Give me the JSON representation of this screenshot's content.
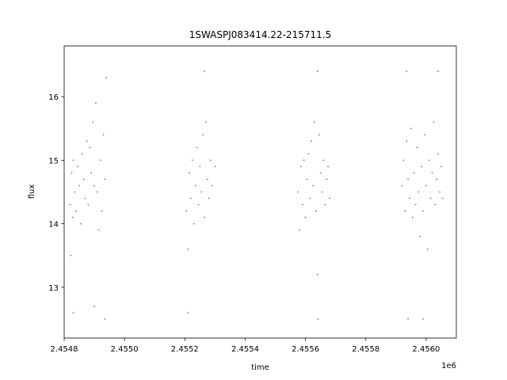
{
  "chart_data": {
    "type": "scatter",
    "title": "1SWASPJ083414.22-215711.5",
    "xlabel": "time",
    "ylabel": "flux",
    "x_offset_label": "1e6",
    "xlim": [
      2454800,
      2456100
    ],
    "ylim": [
      12.2,
      16.8
    ],
    "xticks": [
      2454800,
      2455000,
      2455200,
      2455400,
      2455600,
      2455800,
      2456000
    ],
    "xtick_labels": [
      "2.4548",
      "2.4550",
      "2.4552",
      "2.4554",
      "2.4556",
      "2.4558",
      "2.4560"
    ],
    "yticks": [
      13,
      14,
      15,
      16
    ],
    "ytick_labels": [
      "13",
      "14",
      "15",
      "16"
    ],
    "grid": false,
    "marker_color": "#1f77b4",
    "series": [
      {
        "values": [
          {
            "x": 2454820,
            "y": 14.3
          },
          {
            "x": 2454822,
            "y": 13.5
          },
          {
            "x": 2454825,
            "y": 14.8
          },
          {
            "x": 2454828,
            "y": 14.1
          },
          {
            "x": 2454830,
            "y": 15.0
          },
          {
            "x": 2454835,
            "y": 14.5
          },
          {
            "x": 2454840,
            "y": 14.2
          },
          {
            "x": 2454845,
            "y": 14.9
          },
          {
            "x": 2454850,
            "y": 14.6
          },
          {
            "x": 2454855,
            "y": 14.0
          },
          {
            "x": 2454860,
            "y": 15.1
          },
          {
            "x": 2454865,
            "y": 14.7
          },
          {
            "x": 2454870,
            "y": 14.4
          },
          {
            "x": 2454875,
            "y": 15.3
          },
          {
            "x": 2454880,
            "y": 14.3
          },
          {
            "x": 2454885,
            "y": 15.2
          },
          {
            "x": 2454890,
            "y": 14.8
          },
          {
            "x": 2454895,
            "y": 15.6
          },
          {
            "x": 2454900,
            "y": 14.6
          },
          {
            "x": 2454905,
            "y": 15.9
          },
          {
            "x": 2454910,
            "y": 14.5
          },
          {
            "x": 2454915,
            "y": 13.9
          },
          {
            "x": 2454920,
            "y": 15.0
          },
          {
            "x": 2454925,
            "y": 14.2
          },
          {
            "x": 2454930,
            "y": 15.4
          },
          {
            "x": 2454935,
            "y": 14.7
          },
          {
            "x": 2454940,
            "y": 16.3
          },
          {
            "x": 2454830,
            "y": 12.6
          },
          {
            "x": 2454900,
            "y": 12.7
          },
          {
            "x": 2454935,
            "y": 12.5
          },
          {
            "x": 2455205,
            "y": 14.2
          },
          {
            "x": 2455210,
            "y": 13.6
          },
          {
            "x": 2455215,
            "y": 14.8
          },
          {
            "x": 2455220,
            "y": 14.4
          },
          {
            "x": 2455225,
            "y": 15.0
          },
          {
            "x": 2455230,
            "y": 14.0
          },
          {
            "x": 2455235,
            "y": 14.6
          },
          {
            "x": 2455240,
            "y": 15.2
          },
          {
            "x": 2455245,
            "y": 14.3
          },
          {
            "x": 2455250,
            "y": 14.9
          },
          {
            "x": 2455255,
            "y": 14.5
          },
          {
            "x": 2455260,
            "y": 15.4
          },
          {
            "x": 2455265,
            "y": 14.1
          },
          {
            "x": 2455270,
            "y": 15.6
          },
          {
            "x": 2455275,
            "y": 14.7
          },
          {
            "x": 2455280,
            "y": 14.4
          },
          {
            "x": 2455285,
            "y": 15.0
          },
          {
            "x": 2455290,
            "y": 14.6
          },
          {
            "x": 2455300,
            "y": 14.9
          },
          {
            "x": 2455265,
            "y": 16.4
          },
          {
            "x": 2455210,
            "y": 12.6
          },
          {
            "x": 2455575,
            "y": 14.5
          },
          {
            "x": 2455580,
            "y": 13.9
          },
          {
            "x": 2455585,
            "y": 14.9
          },
          {
            "x": 2455590,
            "y": 14.3
          },
          {
            "x": 2455595,
            "y": 15.0
          },
          {
            "x": 2455600,
            "y": 14.1
          },
          {
            "x": 2455605,
            "y": 14.7
          },
          {
            "x": 2455610,
            "y": 15.1
          },
          {
            "x": 2455615,
            "y": 14.4
          },
          {
            "x": 2455620,
            "y": 15.3
          },
          {
            "x": 2455625,
            "y": 14.6
          },
          {
            "x": 2455630,
            "y": 15.6
          },
          {
            "x": 2455635,
            "y": 14.2
          },
          {
            "x": 2455640,
            "y": 13.2
          },
          {
            "x": 2455642,
            "y": 12.5
          },
          {
            "x": 2455645,
            "y": 15.4
          },
          {
            "x": 2455650,
            "y": 14.8
          },
          {
            "x": 2455655,
            "y": 14.5
          },
          {
            "x": 2455660,
            "y": 15.0
          },
          {
            "x": 2455665,
            "y": 14.3
          },
          {
            "x": 2455670,
            "y": 14.7
          },
          {
            "x": 2455675,
            "y": 14.9
          },
          {
            "x": 2455680,
            "y": 14.4
          },
          {
            "x": 2455640,
            "y": 16.4
          },
          {
            "x": 2455920,
            "y": 14.6
          },
          {
            "x": 2455925,
            "y": 15.0
          },
          {
            "x": 2455930,
            "y": 14.2
          },
          {
            "x": 2455935,
            "y": 15.3
          },
          {
            "x": 2455940,
            "y": 14.7
          },
          {
            "x": 2455945,
            "y": 14.4
          },
          {
            "x": 2455950,
            "y": 15.5
          },
          {
            "x": 2455955,
            "y": 14.1
          },
          {
            "x": 2455960,
            "y": 14.8
          },
          {
            "x": 2455965,
            "y": 14.3
          },
          {
            "x": 2455970,
            "y": 15.2
          },
          {
            "x": 2455975,
            "y": 14.5
          },
          {
            "x": 2455980,
            "y": 13.8
          },
          {
            "x": 2455985,
            "y": 14.9
          },
          {
            "x": 2455990,
            "y": 14.2
          },
          {
            "x": 2455995,
            "y": 15.4
          },
          {
            "x": 2456000,
            "y": 14.6
          },
          {
            "x": 2456005,
            "y": 13.6
          },
          {
            "x": 2456010,
            "y": 15.0
          },
          {
            "x": 2456015,
            "y": 14.4
          },
          {
            "x": 2456020,
            "y": 14.8
          },
          {
            "x": 2456025,
            "y": 15.6
          },
          {
            "x": 2456030,
            "y": 14.3
          },
          {
            "x": 2456035,
            "y": 14.7
          },
          {
            "x": 2456040,
            "y": 15.1
          },
          {
            "x": 2456045,
            "y": 14.5
          },
          {
            "x": 2456050,
            "y": 14.9
          },
          {
            "x": 2456055,
            "y": 14.4
          },
          {
            "x": 2455935,
            "y": 16.4
          },
          {
            "x": 2455940,
            "y": 12.5
          },
          {
            "x": 2455990,
            "y": 12.5
          },
          {
            "x": 2456040,
            "y": 16.4
          }
        ]
      }
    ]
  }
}
